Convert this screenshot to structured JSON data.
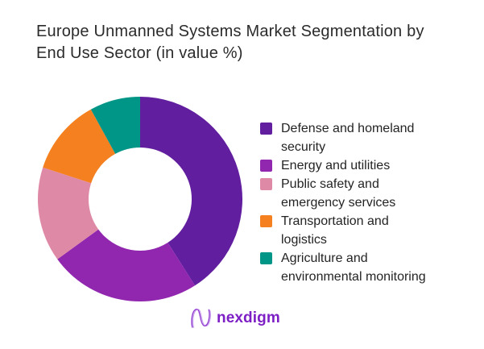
{
  "header": {
    "title": "Europe Unmanned Systems Market Segmentation by End Use Sector (in value %)",
    "title_lines": [
      "Europe Unmanned Systems Market Segmentation by",
      "End Use Sector (in value %)"
    ]
  },
  "chart_data": {
    "type": "pie",
    "subtype": "donut",
    "title": "Europe Unmanned Systems Market Segmentation by End Use Sector (in value %)",
    "unit": "value %",
    "categories": [
      "Defense and homeland security",
      "Energy and utilities",
      "Public safety and emergency services",
      "Transportation and logistics",
      "Agriculture and environmental monitoring"
    ],
    "values": [
      41,
      24,
      15,
      12,
      8
    ],
    "colors": [
      "#611E9E",
      "#9127AF",
      "#DE89A5",
      "#F5801F",
      "#009687"
    ],
    "start_angle_deg": 0,
    "direction": "clockwise",
    "inner_radius_ratio": 0.5,
    "legend_position": "right",
    "data_labels_shown": false
  },
  "legend": {
    "items": [
      {
        "label": "Defense and homeland security",
        "lines": [
          "Defense and homeland",
          "security"
        ],
        "color": "#611E9E"
      },
      {
        "label": "Energy and utilities",
        "lines": [
          "Energy and utilities"
        ],
        "color": "#9127AF"
      },
      {
        "label": "Public safety and emergency services",
        "lines": [
          "Public safety and",
          "emergency services"
        ],
        "color": "#DE89A5"
      },
      {
        "label": "Transportation and logistics",
        "lines": [
          "Transportation and",
          "logistics"
        ],
        "color": "#F5801F"
      },
      {
        "label": "Agriculture and environmental monitoring",
        "lines": [
          "Agriculture and",
          "environmental monitoring"
        ],
        "color": "#009687"
      }
    ]
  },
  "footer": {
    "brand": "nexdigm",
    "brand_color": "#7D1FC4"
  }
}
